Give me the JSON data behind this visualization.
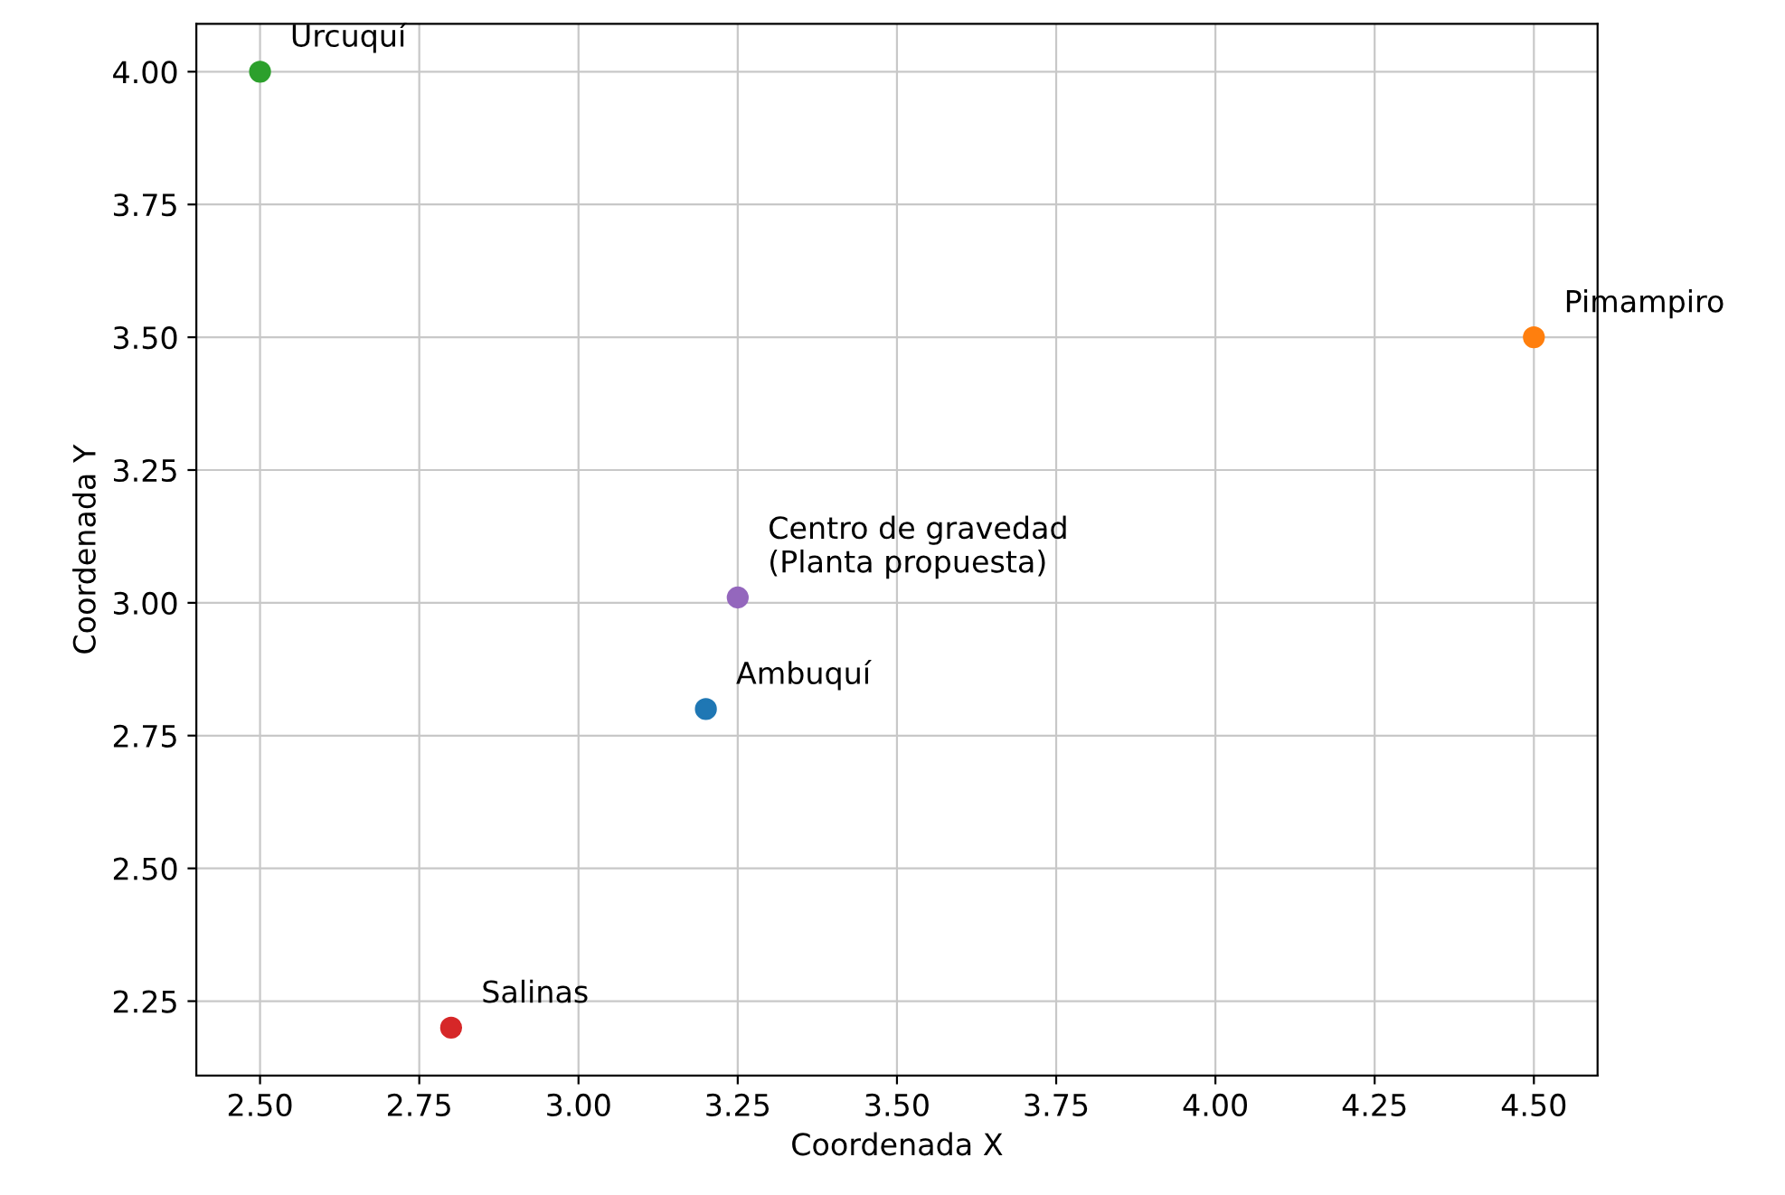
{
  "chart_data": {
    "type": "scatter",
    "xlabel": "Coordenada X",
    "ylabel": "Coordenada Y",
    "xlim": [
      2.4,
      4.6
    ],
    "ylim": [
      2.11,
      4.09
    ],
    "xticks": [
      {
        "value": 2.5,
        "label": "2.50"
      },
      {
        "value": 2.75,
        "label": "2.75"
      },
      {
        "value": 3.0,
        "label": "3.00"
      },
      {
        "value": 3.25,
        "label": "3.25"
      },
      {
        "value": 3.5,
        "label": "3.50"
      },
      {
        "value": 3.75,
        "label": "3.75"
      },
      {
        "value": 4.0,
        "label": "4.00"
      },
      {
        "value": 4.25,
        "label": "4.25"
      },
      {
        "value": 4.5,
        "label": "4.50"
      }
    ],
    "yticks": [
      {
        "value": 2.25,
        "label": "2.25"
      },
      {
        "value": 2.5,
        "label": "2.50"
      },
      {
        "value": 2.75,
        "label": "2.75"
      },
      {
        "value": 3.0,
        "label": "3.00"
      },
      {
        "value": 3.25,
        "label": "3.25"
      },
      {
        "value": 3.5,
        "label": "3.50"
      },
      {
        "value": 3.75,
        "label": "3.75"
      },
      {
        "value": 4.0,
        "label": "4.00"
      }
    ],
    "grid": true,
    "marker": "circle",
    "series": [
      {
        "name": "Ambuquí",
        "color": "#1f77b4",
        "x": [
          3.2
        ],
        "values": [
          2.8
        ]
      },
      {
        "name": "Pimampiro",
        "color": "#ff7f0e",
        "x": [
          4.5
        ],
        "values": [
          3.5
        ]
      },
      {
        "name": "Urcuquí",
        "color": "#2ca02c",
        "x": [
          2.5
        ],
        "values": [
          4.0
        ]
      },
      {
        "name": "Salinas",
        "color": "#d62728",
        "x": [
          2.8
        ],
        "values": [
          2.2
        ]
      },
      {
        "name": "Centro de gravedad\n(Planta propuesta)",
        "color": "#9467bd",
        "x": [
          3.25
        ],
        "values": [
          3.01
        ]
      }
    ]
  }
}
